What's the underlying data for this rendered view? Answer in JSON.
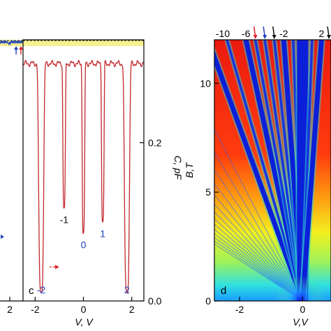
{
  "chart_data": [
    {
      "panel": "left-partial",
      "type": "line",
      "xlabel": "",
      "x_ticks": [
        {
          "value": 2,
          "label": "2"
        }
      ],
      "x_range": [
        -3.2,
        2.6
      ],
      "arrows": [
        {
          "color": "#1f3fbf",
          "direction": "up",
          "x": 0.85
        },
        {
          "color": "#e0202a",
          "direction": "up",
          "x": 2.1
        }
      ],
      "side_arrow": {
        "color": "#1f3fbf",
        "direction": "right"
      }
    },
    {
      "panel": "c",
      "panel_label": "c",
      "type": "line",
      "xlabel": "V, V",
      "ylabel": "C, pF",
      "xlim": [
        -2.5,
        2.5
      ],
      "ylim": [
        0.0,
        0.33
      ],
      "x_ticks": [
        {
          "value": -2,
          "label": "-2"
        },
        {
          "value": 0,
          "label": "0"
        },
        {
          "value": 2,
          "label": "2"
        }
      ],
      "y_ticks": [
        {
          "value": 0.0,
          "label": "0.0"
        },
        {
          "value": 0.2,
          "label": "0.2"
        }
      ],
      "baseline_pf": 0.3,
      "dashed_level_pf": 0.329,
      "highlight_band_pf": [
        0.322,
        0.335
      ],
      "highlight_color": "#f6f090",
      "line_color": "#c1272d",
      "dips": [
        {
          "center": -1.75,
          "min_pf": 0.012,
          "width": 0.12,
          "label": "-2",
          "label_color": "#1f3fbf",
          "label_suffix_color": "#111111"
        },
        {
          "center": -0.8,
          "min_pf": 0.118,
          "width": 0.06,
          "label": "-1",
          "label_color": "#111111"
        },
        {
          "center": 0.0,
          "min_pf": 0.086,
          "width": 0.06,
          "label": "0",
          "label_color": "#1f3fbf"
        },
        {
          "center": 0.8,
          "min_pf": 0.1,
          "width": 0.06,
          "label": "1",
          "label_color": "#1f3fbf"
        },
        {
          "center": 1.8,
          "min_pf": 0.012,
          "width": 0.12,
          "label": "2",
          "label_color": "#1f3fbf"
        }
      ],
      "sweep_arrow": {
        "color": "#e0202a",
        "x_from": -1.4,
        "x_to": -1.0,
        "y_pf": 0.043
      }
    },
    {
      "panel": "d",
      "panel_label": "d",
      "type": "heatmap",
      "xlabel": "V,V",
      "ylabel": "B,T",
      "xlim": [
        -2.8,
        0.9
      ],
      "ylim": [
        0,
        12
      ],
      "x_ticks": [
        {
          "value": -2,
          "label": "-2"
        },
        {
          "value": 0,
          "label": "0"
        }
      ],
      "y_ticks": [
        {
          "value": 0,
          "label": "0"
        },
        {
          "value": 5,
          "label": "5"
        },
        {
          "value": 10,
          "label": "10"
        }
      ],
      "colormap": "jet",
      "fan_center_v": 0,
      "fan_lines": [
        {
          "nu": -10,
          "label": "-10",
          "major": true
        },
        {
          "nu": -8,
          "major": false
        },
        {
          "nu": -6,
          "label": "-6",
          "major": true
        },
        {
          "nu": -5,
          "major": false
        },
        {
          "nu": -4,
          "major": false
        },
        {
          "nu": -3,
          "major": false
        },
        {
          "nu": -2,
          "label": "-2",
          "major": true
        },
        {
          "nu": -1,
          "major": false
        },
        {
          "nu": 0,
          "major": true
        },
        {
          "nu": 1,
          "major": false
        },
        {
          "nu": 2,
          "label": "2",
          "major": true
        }
      ],
      "top_arrows": [
        {
          "color": "#e0202a",
          "nu": -5
        },
        {
          "color": "#1f3fbf",
          "nu": -4
        },
        {
          "color": "#111111",
          "nu": -3
        },
        {
          "color": "#111111",
          "nu": 3
        }
      ]
    }
  ]
}
